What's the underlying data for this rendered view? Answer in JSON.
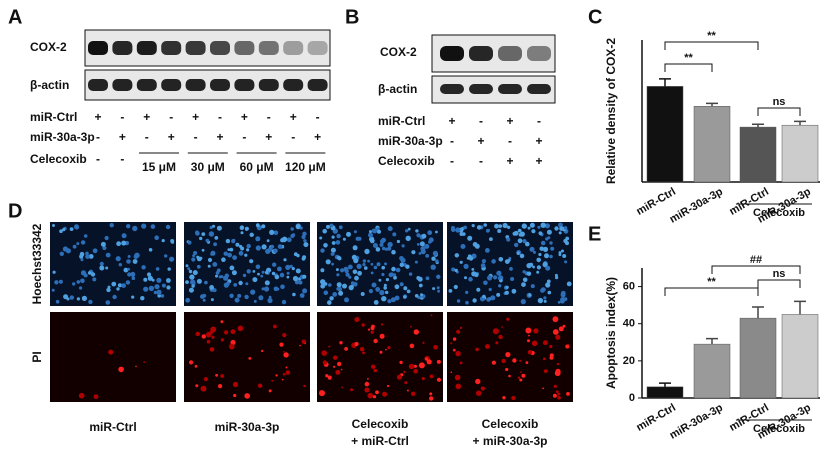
{
  "panel_labels": [
    "A",
    "B",
    "C",
    "D",
    "E"
  ],
  "blot_a": {
    "rows": [
      "COX-2",
      "β-actin"
    ],
    "conditions": [
      {
        "label": "miR-Ctrl",
        "marks": [
          "+",
          "-",
          "+",
          "-",
          "+",
          "-",
          "+",
          "-",
          "+",
          "-"
        ]
      },
      {
        "label": "miR-30a-3p",
        "marks": [
          "-",
          "+",
          "-",
          "+",
          "-",
          "+",
          "-",
          "+",
          "-",
          "+"
        ]
      },
      {
        "label": "Celecoxib",
        "marks": [
          "-",
          "-"
        ]
      }
    ],
    "doses": [
      "15 μM",
      "30 μM",
      "60 μM",
      "120 μM"
    ]
  },
  "blot_b": {
    "rows": [
      "COX-2",
      "β-actin"
    ],
    "conditions": [
      {
        "label": "miR-Ctrl",
        "marks": [
          "+",
          "-",
          "+",
          "-"
        ]
      },
      {
        "label": "miR-30a-3p",
        "marks": [
          "-",
          "+",
          "-",
          "+"
        ]
      },
      {
        "label": "Celecoxib",
        "marks": [
          "-",
          "-",
          "+",
          "+"
        ]
      }
    ]
  },
  "images": {
    "rows": [
      "Hoechst33342",
      "PI"
    ],
    "columns": [
      [
        "miR-Ctrl"
      ],
      [
        "miR-30a-3p"
      ],
      [
        "Celecoxib",
        "+ miR-Ctrl"
      ],
      [
        "Celecoxib",
        "+ miR-30a-3p"
      ]
    ]
  },
  "chart_data": [
    {
      "type": "bar",
      "y_label": "Relative density of COX-2",
      "categories": [
        "miR-Ctrl",
        "miR-30a-3p",
        "miR-Ctrl",
        "miR-30a-3p"
      ],
      "values": [
        1.01,
        0.8,
        0.58,
        0.6
      ],
      "errors": [
        0.08,
        0.03,
        0.03,
        0.04
      ],
      "colors": [
        "#111111",
        "#9a9a9a",
        "#555555",
        "#cccccc"
      ],
      "ylim": [
        0,
        1.5
      ],
      "group_label": "Celecoxib",
      "annotations": [
        "**",
        "**",
        "ns"
      ]
    },
    {
      "type": "bar",
      "y_label": "Apoptosis index(%)",
      "categories": [
        "miR-Ctrl",
        "miR-30a-3p",
        "miR-Ctrl",
        "miR-30a-3p"
      ],
      "values": [
        6,
        29,
        43,
        45
      ],
      "errors": [
        2,
        3,
        6,
        7
      ],
      "colors": [
        "#111111",
        "#9a9a9a",
        "#8a8a8a",
        "#cccccc"
      ],
      "ylim": [
        0,
        70
      ],
      "yticks": [
        0,
        20,
        40,
        60
      ],
      "group_label": "Celecoxib",
      "annotations": [
        "**",
        "##",
        "ns"
      ]
    }
  ]
}
